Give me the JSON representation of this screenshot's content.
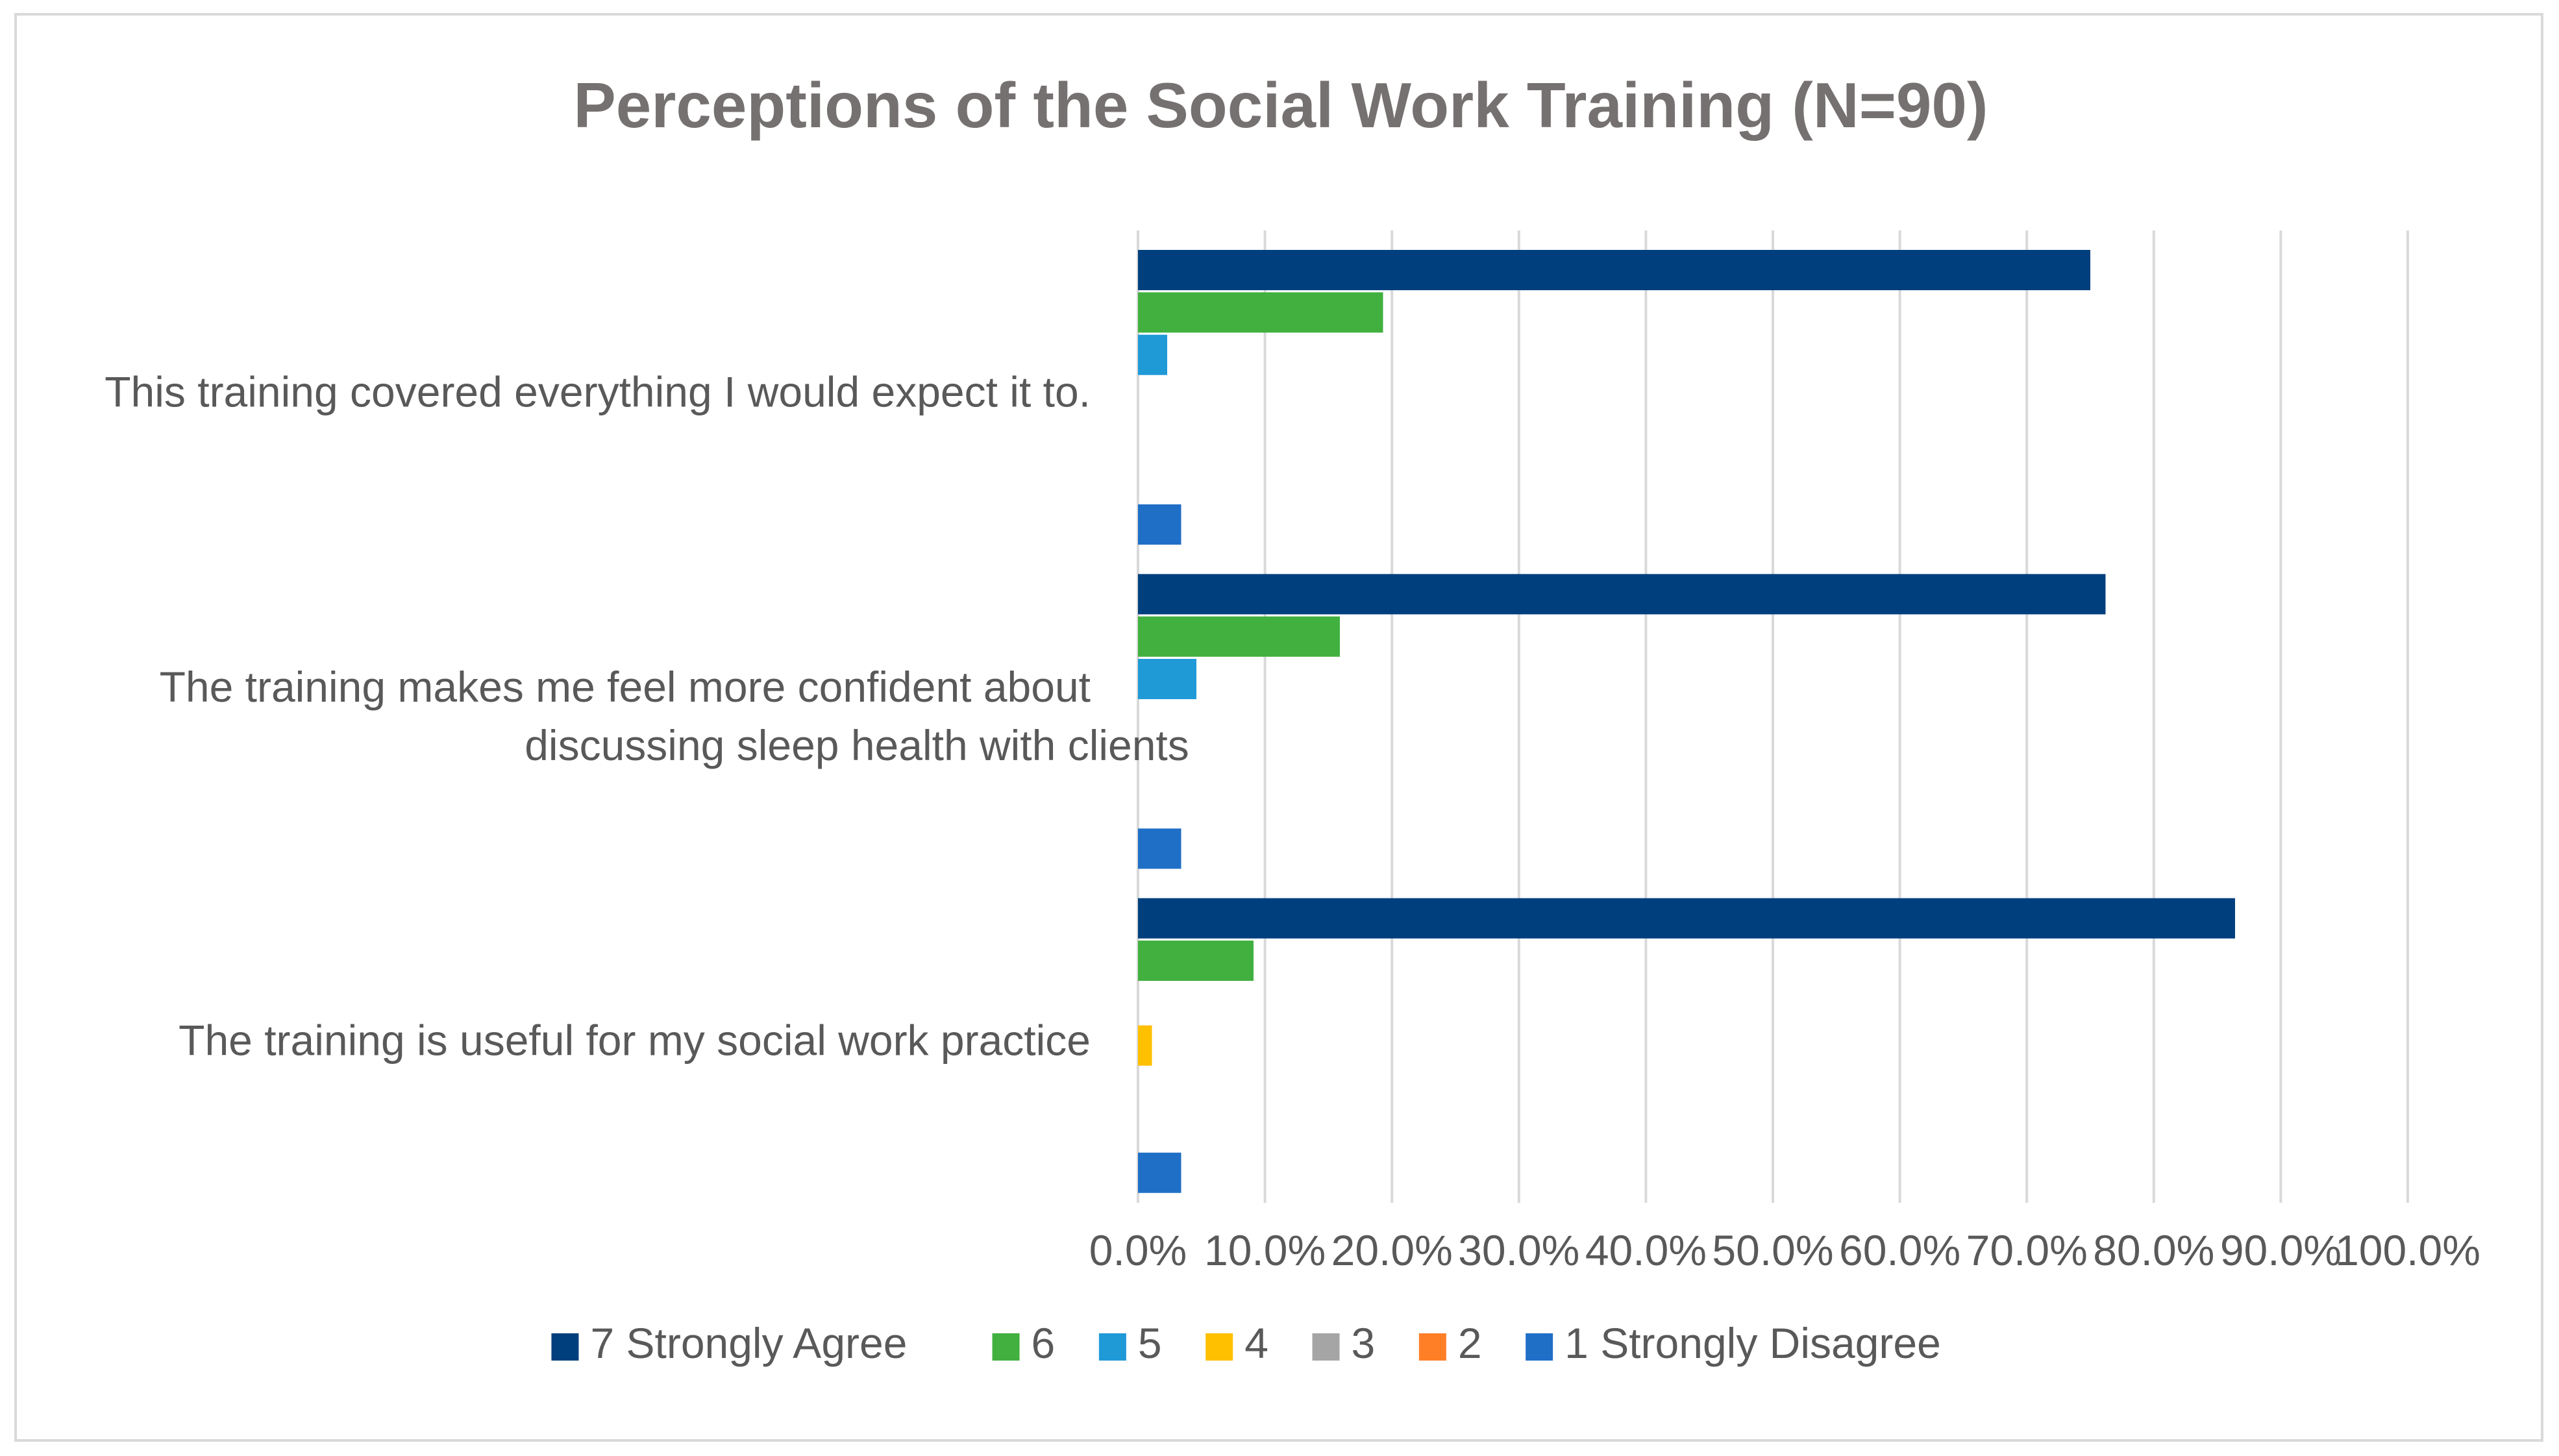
{
  "chart_data": {
    "type": "bar",
    "orientation": "horizontal",
    "title": "Perceptions of the Social Work Training (N=90)",
    "xlabel": "",
    "ylabel": "",
    "xlim": [
      0,
      100
    ],
    "grid": true,
    "legend_position": "bottom",
    "x_ticks": [
      "0.0%",
      "10.0%",
      "20.0%",
      "30.0%",
      "40.0%",
      "50.0%",
      "60.0%",
      "70.0%",
      "80.0%",
      "90.0%",
      "100.0%"
    ],
    "categories": [
      {
        "lines": [
          "This training covered everything I would expect it to."
        ]
      },
      {
        "lines": [
          "The training makes me feel more confident about",
          "discussing sleep health with clients"
        ]
      },
      {
        "lines": [
          "The training is useful for my social work practice"
        ]
      }
    ],
    "series": [
      {
        "name": "7 Strongly Agree",
        "color": "#003f7d",
        "values": [
          75.0,
          76.2,
          86.4
        ]
      },
      {
        "name": "6",
        "color": "#41b03f",
        "values": [
          19.3,
          15.9,
          9.1
        ]
      },
      {
        "name": "5",
        "color": "#1f9ad7",
        "values": [
          2.3,
          4.6,
          0.0
        ]
      },
      {
        "name": "4",
        "color": "#ffc000",
        "values": [
          0.0,
          0.0,
          1.1
        ]
      },
      {
        "name": "3",
        "color": "#a5a5a5",
        "values": [
          0.0,
          0.0,
          0.0
        ]
      },
      {
        "name": "2",
        "color": "#ff7f27",
        "values": [
          0.0,
          0.0,
          0.0
        ]
      },
      {
        "name": "1  Strongly Disagree",
        "color": "#1f6fc6",
        "values": [
          3.4,
          3.4,
          3.4
        ]
      }
    ]
  }
}
